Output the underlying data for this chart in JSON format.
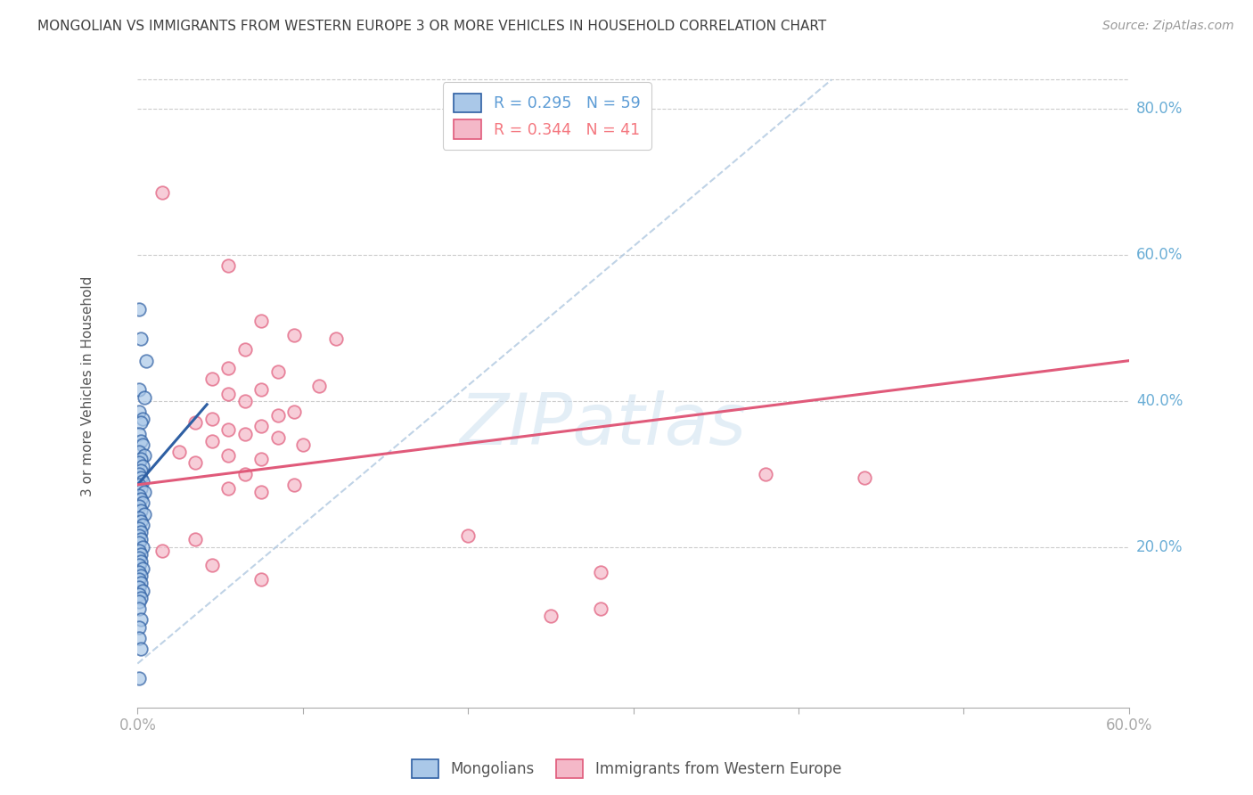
{
  "title": "MONGOLIAN VS IMMIGRANTS FROM WESTERN EUROPE 3 OR MORE VEHICLES IN HOUSEHOLD CORRELATION CHART",
  "source": "Source: ZipAtlas.com",
  "ylabel_label": "3 or more Vehicles in Household",
  "xmin": 0.0,
  "xmax": 0.6,
  "ymin": -0.02,
  "ymax": 0.86,
  "legend_entries": [
    {
      "label": "R = 0.295   N = 59",
      "color": "#5b9bd5"
    },
    {
      "label": "R = 0.344   N = 41",
      "color": "#f4777f"
    }
  ],
  "legend_labels_bottom": [
    "Mongolians",
    "Immigrants from Western Europe"
  ],
  "watermark_text": "ZIPatlas",
  "blue_scatter": [
    [
      0.001,
      0.525
    ],
    [
      0.002,
      0.485
    ],
    [
      0.005,
      0.455
    ],
    [
      0.001,
      0.415
    ],
    [
      0.004,
      0.405
    ],
    [
      0.001,
      0.385
    ],
    [
      0.003,
      0.375
    ],
    [
      0.002,
      0.37
    ],
    [
      0.001,
      0.355
    ],
    [
      0.002,
      0.345
    ],
    [
      0.003,
      0.34
    ],
    [
      0.001,
      0.33
    ],
    [
      0.004,
      0.325
    ],
    [
      0.002,
      0.32
    ],
    [
      0.001,
      0.315
    ],
    [
      0.003,
      0.31
    ],
    [
      0.002,
      0.305
    ],
    [
      0.001,
      0.3
    ],
    [
      0.002,
      0.295
    ],
    [
      0.003,
      0.29
    ],
    [
      0.001,
      0.285
    ],
    [
      0.002,
      0.28
    ],
    [
      0.004,
      0.275
    ],
    [
      0.001,
      0.27
    ],
    [
      0.002,
      0.265
    ],
    [
      0.003,
      0.26
    ],
    [
      0.001,
      0.255
    ],
    [
      0.002,
      0.25
    ],
    [
      0.004,
      0.245
    ],
    [
      0.001,
      0.24
    ],
    [
      0.002,
      0.235
    ],
    [
      0.003,
      0.23
    ],
    [
      0.001,
      0.225
    ],
    [
      0.002,
      0.22
    ],
    [
      0.001,
      0.215
    ],
    [
      0.002,
      0.21
    ],
    [
      0.001,
      0.205
    ],
    [
      0.003,
      0.2
    ],
    [
      0.001,
      0.195
    ],
    [
      0.002,
      0.19
    ],
    [
      0.001,
      0.185
    ],
    [
      0.002,
      0.18
    ],
    [
      0.001,
      0.175
    ],
    [
      0.003,
      0.17
    ],
    [
      0.001,
      0.165
    ],
    [
      0.002,
      0.16
    ],
    [
      0.001,
      0.155
    ],
    [
      0.002,
      0.15
    ],
    [
      0.001,
      0.145
    ],
    [
      0.003,
      0.14
    ],
    [
      0.001,
      0.135
    ],
    [
      0.002,
      0.13
    ],
    [
      0.001,
      0.125
    ],
    [
      0.001,
      0.115
    ],
    [
      0.002,
      0.1
    ],
    [
      0.001,
      0.09
    ],
    [
      0.001,
      0.075
    ],
    [
      0.002,
      0.06
    ],
    [
      0.001,
      0.02
    ]
  ],
  "pink_scatter": [
    [
      0.015,
      0.685
    ],
    [
      0.055,
      0.585
    ],
    [
      0.075,
      0.51
    ],
    [
      0.095,
      0.49
    ],
    [
      0.12,
      0.485
    ],
    [
      0.065,
      0.47
    ],
    [
      0.055,
      0.445
    ],
    [
      0.085,
      0.44
    ],
    [
      0.045,
      0.43
    ],
    [
      0.11,
      0.42
    ],
    [
      0.075,
      0.415
    ],
    [
      0.055,
      0.41
    ],
    [
      0.065,
      0.4
    ],
    [
      0.095,
      0.385
    ],
    [
      0.085,
      0.38
    ],
    [
      0.045,
      0.375
    ],
    [
      0.035,
      0.37
    ],
    [
      0.075,
      0.365
    ],
    [
      0.055,
      0.36
    ],
    [
      0.065,
      0.355
    ],
    [
      0.085,
      0.35
    ],
    [
      0.045,
      0.345
    ],
    [
      0.1,
      0.34
    ],
    [
      0.025,
      0.33
    ],
    [
      0.055,
      0.325
    ],
    [
      0.075,
      0.32
    ],
    [
      0.035,
      0.315
    ],
    [
      0.065,
      0.3
    ],
    [
      0.38,
      0.3
    ],
    [
      0.44,
      0.295
    ],
    [
      0.095,
      0.285
    ],
    [
      0.055,
      0.28
    ],
    [
      0.075,
      0.275
    ],
    [
      0.2,
      0.215
    ],
    [
      0.035,
      0.21
    ],
    [
      0.015,
      0.195
    ],
    [
      0.045,
      0.175
    ],
    [
      0.28,
      0.165
    ],
    [
      0.075,
      0.155
    ],
    [
      0.28,
      0.115
    ],
    [
      0.25,
      0.105
    ]
  ],
  "blue_line_color": "#2e5fa3",
  "pink_line_color": "#e05a7a",
  "scatter_blue_color": "#aac8e8",
  "scatter_pink_color": "#f4b8c8",
  "grid_color": "#cccccc",
  "title_color": "#404040",
  "axis_tick_color": "#6baed6",
  "ref_line_color": "#b0c8e0"
}
